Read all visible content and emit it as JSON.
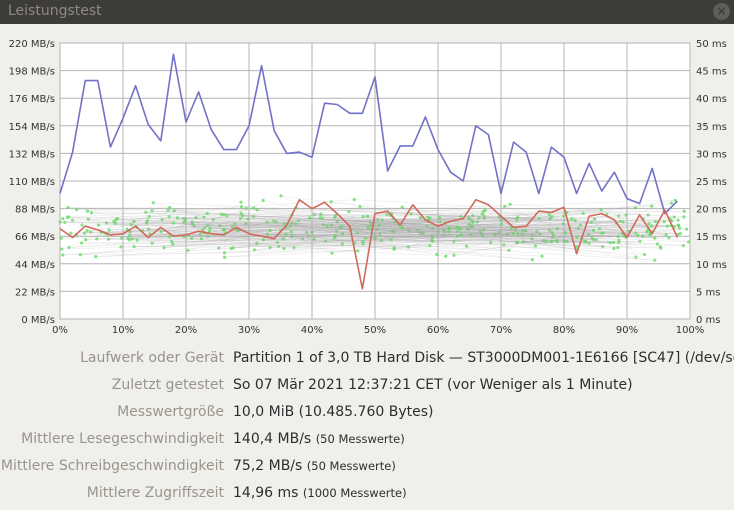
{
  "window": {
    "title": "Leistungstest"
  },
  "chart_data": {
    "type": "line",
    "x_ticks": [
      "0%",
      "10%",
      "20%",
      "30%",
      "40%",
      "50%",
      "60%",
      "70%",
      "80%",
      "90%",
      "100%"
    ],
    "y_left_ticks": [
      "0 MB/s",
      "22 MB/s",
      "44 MB/s",
      "66 MB/s",
      "88 MB/s",
      "110 MB/s",
      "132 MB/s",
      "154 MB/s",
      "176 MB/s",
      "198 MB/s",
      "220 MB/s"
    ],
    "y_right_ticks": [
      "0 ms",
      "5 ms",
      "10 ms",
      "15 ms",
      "20 ms",
      "25 ms",
      "30 ms",
      "35 ms",
      "40 ms",
      "45 ms",
      "50 ms"
    ],
    "ylim_left": [
      0,
      220
    ],
    "ylim_right": [
      0,
      50
    ],
    "xlim": [
      0,
      100
    ],
    "series": [
      {
        "color": "#7272c8",
        "axis": "left",
        "x": [
          0,
          2,
          4,
          6,
          8,
          10,
          12,
          14,
          16,
          18,
          20,
          22,
          24,
          26,
          28,
          30,
          32,
          34,
          36,
          38,
          40,
          42,
          44,
          46,
          48,
          50,
          52,
          54,
          56,
          58,
          60,
          62,
          64,
          66,
          68,
          70,
          72,
          74,
          76,
          78,
          80,
          82,
          84,
          86,
          88,
          90,
          92,
          94,
          96,
          98
        ],
        "values": [
          100,
          133,
          190,
          190,
          137,
          160,
          186,
          155,
          142,
          211,
          157,
          181,
          151,
          135,
          135,
          154,
          202,
          150,
          132,
          133,
          129,
          172,
          171,
          164,
          164,
          193,
          118,
          138,
          138,
          161,
          135,
          117,
          110,
          154,
          147,
          100,
          141,
          133,
          100,
          137,
          129,
          100,
          124,
          102,
          117,
          96,
          92,
          120,
          84,
          94
        ]
      },
      {
        "color": "#d06a5a",
        "axis": "left",
        "x": [
          0,
          2,
          4,
          6,
          8,
          10,
          12,
          14,
          16,
          18,
          20,
          22,
          24,
          26,
          28,
          30,
          32,
          34,
          36,
          38,
          40,
          42,
          44,
          46,
          48,
          50,
          52,
          54,
          56,
          58,
          60,
          62,
          64,
          66,
          68,
          70,
          72,
          74,
          76,
          78,
          80,
          82,
          84,
          86,
          88,
          90,
          92,
          94,
          96,
          98
        ],
        "values": [
          72,
          65,
          74,
          71,
          67,
          68,
          74,
          65,
          73,
          66,
          67,
          70,
          68,
          67,
          73,
          68,
          66,
          64,
          75,
          95,
          88,
          93,
          84,
          74,
          24,
          84,
          86,
          75,
          91,
          79,
          74,
          78,
          80,
          95,
          91,
          82,
          73,
          74,
          86,
          85,
          89,
          52,
          82,
          84,
          79,
          65,
          83,
          68,
          87,
          65
        ]
      }
    ],
    "scatter_color": "#5cdc5c"
  },
  "info": [
    {
      "label": "Laufwerk oder Gerät",
      "value": "Partition 1 of 3,0 TB Hard Disk — ST3000DM001-1E6166 [SC47] (/dev/sdc1)",
      "note": ""
    },
    {
      "label": "Zuletzt getestet",
      "value": "So 07 Mär 2021 12:37:21 CET (vor Weniger als 1 Minute)",
      "note": ""
    },
    {
      "label": "Messwertgröße",
      "value": "10,0 MiB (10.485.760 Bytes)",
      "note": ""
    },
    {
      "label": "Mittlere Lesegeschwindigkeit",
      "value": "140,4 MB/s",
      "note": "(50 Messwerte)"
    },
    {
      "label": "Mittlere Schreibgeschwindigkeit",
      "value": "75,2 MB/s",
      "note": "(50 Messwerte)"
    },
    {
      "label": "Mittlere Zugriffszeit",
      "value": "14,96 ms",
      "note": "(1000 Messwerte)"
    }
  ]
}
